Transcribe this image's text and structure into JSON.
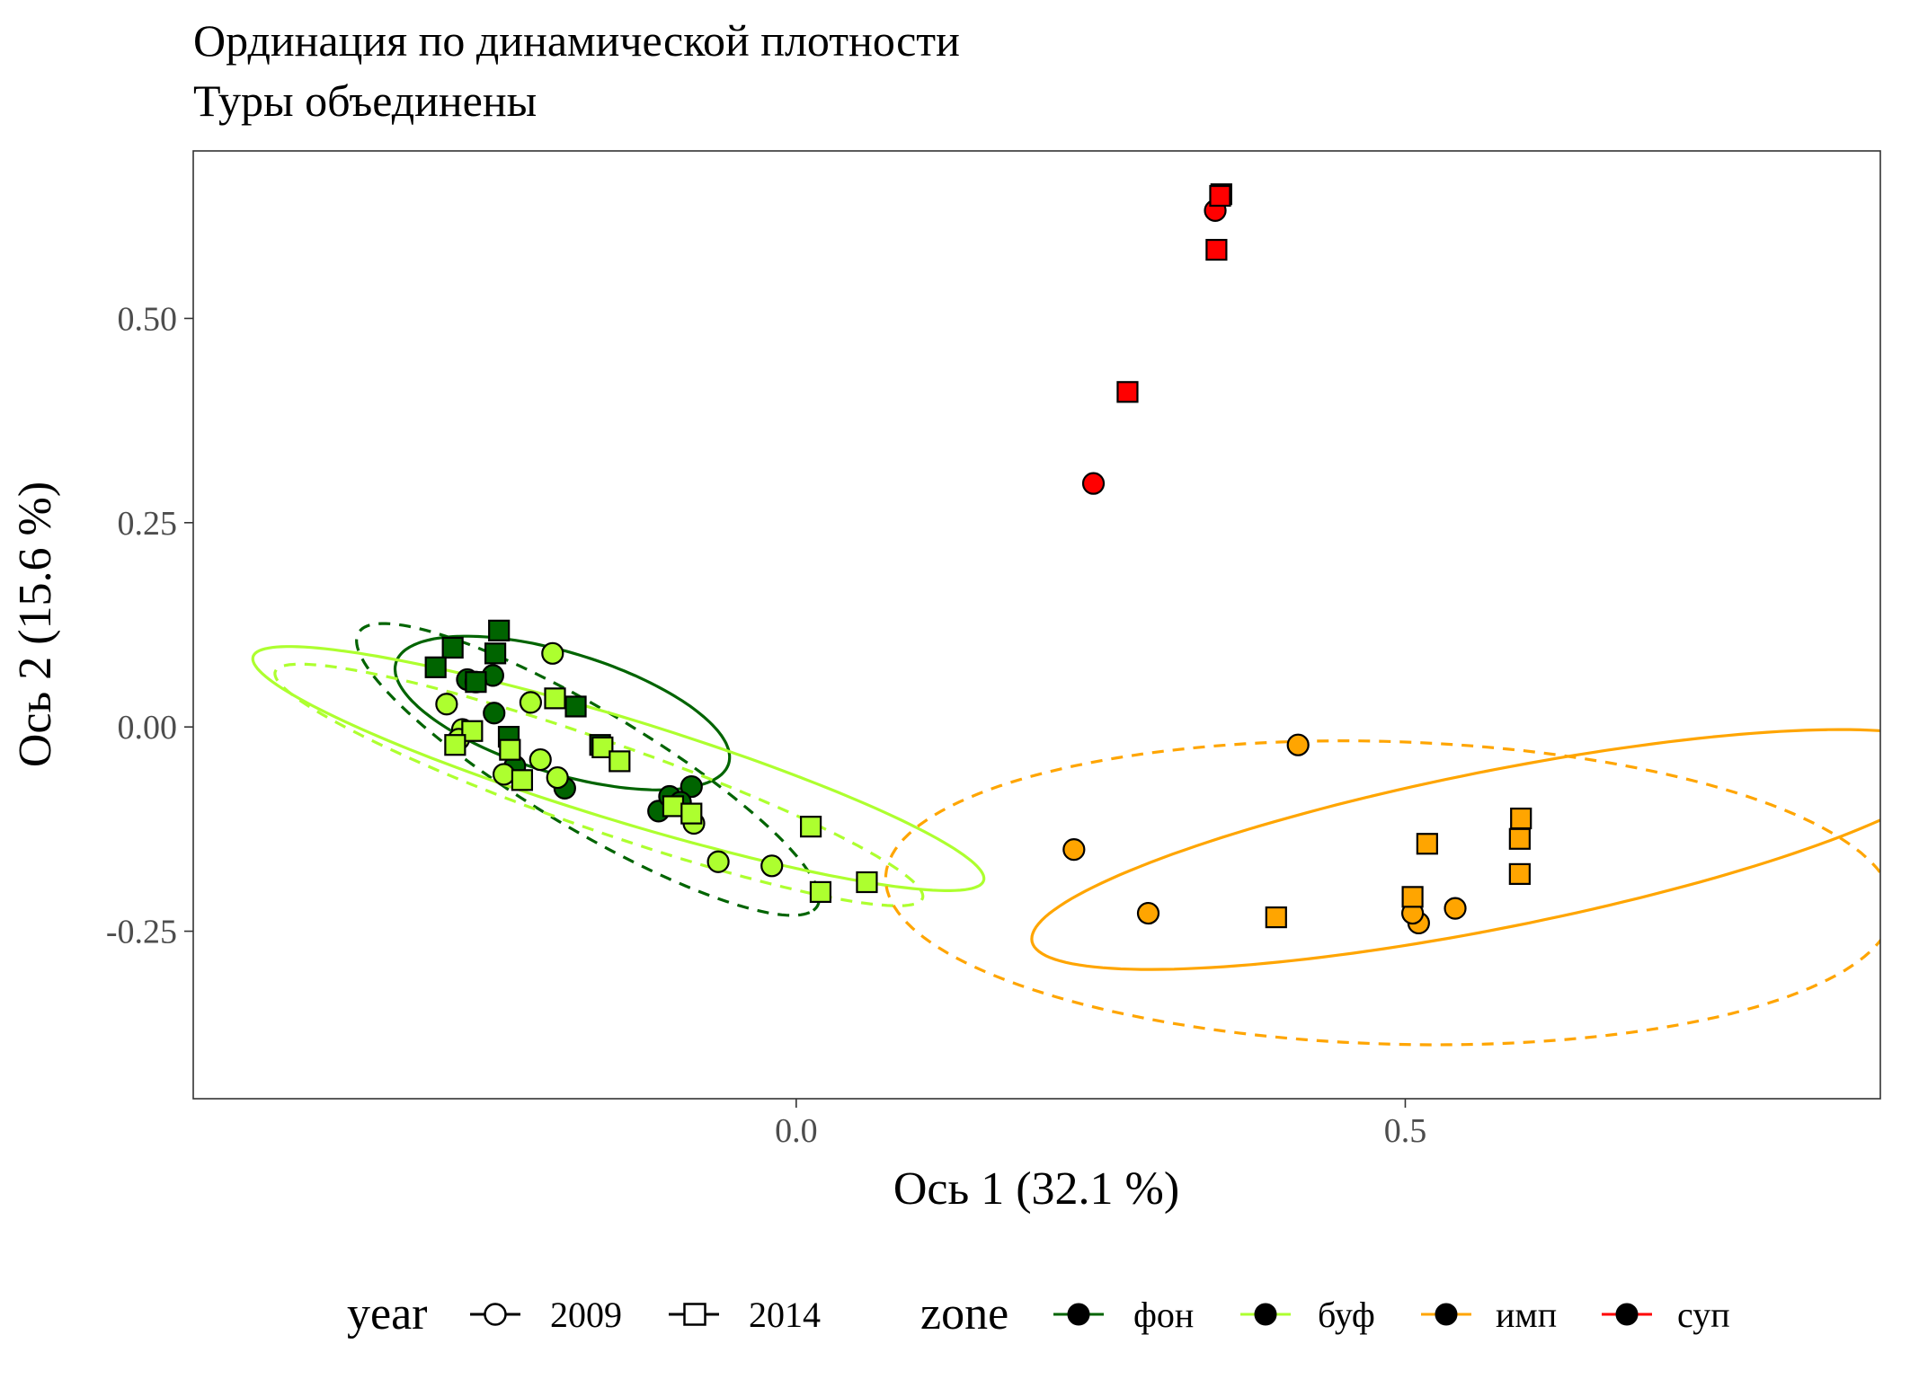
{
  "chart_data": {
    "type": "scatter",
    "title": "Ординация по динамической плотности",
    "subtitle": "Туры объединены",
    "xlabel": "Ось 1 (32.1 %)",
    "ylabel": "Ось 2 (15.6 %)",
    "xlim": [
      -0.495,
      0.89
    ],
    "ylim": [
      -0.455,
      0.705
    ],
    "x_ticks": [
      {
        "value": 0.0,
        "label": "0.0"
      },
      {
        "value": 0.5,
        "label": "0.5"
      }
    ],
    "y_ticks": [
      {
        "value": 0.5,
        "label": "0.50"
      },
      {
        "value": 0.25,
        "label": "0.25"
      },
      {
        "value": 0.0,
        "label": "0.00"
      },
      {
        "value": -0.25,
        "label": "-0.25"
      }
    ],
    "grid": false,
    "legend_position": "bottom",
    "legend": {
      "year_title": "year",
      "year_items": [
        {
          "label": "2009",
          "shape": "circle",
          "linetype": "solid"
        },
        {
          "label": "2014",
          "shape": "square",
          "linetype": "dashed"
        }
      ],
      "zone_title": "zone",
      "zone_items": [
        {
          "label": "фон",
          "color": "#006400"
        },
        {
          "label": "буф",
          "color": "#adff2f"
        },
        {
          "label": "имп",
          "color": "#ffa500"
        },
        {
          "label": "суп",
          "color": "#ff0000"
        }
      ]
    },
    "colors": {
      "фон": "#006400",
      "буф": "#adff2f",
      "имп": "#ffa500",
      "суп": "#ff0000"
    },
    "series": [
      {
        "zone": "фон",
        "year": "2009",
        "points": [
          [
            -0.249,
            0.063
          ],
          [
            -0.27,
            0.058
          ],
          [
            -0.263,
            0.055
          ],
          [
            -0.248,
            0.017
          ],
          [
            -0.231,
            -0.048
          ],
          [
            -0.19,
            -0.075
          ],
          [
            -0.113,
            -0.103
          ],
          [
            -0.086,
            -0.073
          ],
          [
            -0.104,
            -0.085
          ],
          [
            -0.095,
            -0.092
          ]
        ]
      },
      {
        "zone": "фон",
        "year": "2014",
        "points": [
          [
            -0.282,
            0.097
          ],
          [
            -0.296,
            0.073
          ],
          [
            -0.244,
            0.118
          ],
          [
            -0.247,
            0.09
          ],
          [
            -0.263,
            0.055
          ],
          [
            -0.181,
            0.025
          ],
          [
            -0.236,
            -0.012
          ],
          [
            -0.161,
            -0.022
          ]
        ]
      },
      {
        "zone": "буф",
        "year": "2009",
        "points": [
          [
            -0.2,
            0.09
          ],
          [
            -0.287,
            0.028
          ],
          [
            -0.218,
            0.03
          ],
          [
            -0.274,
            -0.003
          ],
          [
            -0.277,
            -0.015
          ],
          [
            -0.21,
            -0.04
          ],
          [
            -0.24,
            -0.058
          ],
          [
            -0.196,
            -0.062
          ],
          [
            -0.084,
            -0.118
          ],
          [
            -0.064,
            -0.165
          ],
          [
            -0.02,
            -0.17
          ]
        ]
      },
      {
        "zone": "буф",
        "year": "2014",
        "points": [
          [
            -0.198,
            0.035
          ],
          [
            -0.266,
            -0.005
          ],
          [
            -0.28,
            -0.022
          ],
          [
            -0.235,
            -0.028
          ],
          [
            -0.159,
            -0.025
          ],
          [
            -0.145,
            -0.042
          ],
          [
            -0.225,
            -0.065
          ],
          [
            -0.101,
            -0.097
          ],
          [
            -0.086,
            -0.106
          ],
          [
            0.012,
            -0.122
          ],
          [
            0.02,
            -0.202
          ],
          [
            0.058,
            -0.19
          ]
        ]
      },
      {
        "zone": "имп",
        "year": "2009",
        "points": [
          [
            0.228,
            -0.15
          ],
          [
            0.289,
            -0.228
          ],
          [
            0.412,
            -0.022
          ],
          [
            0.541,
            -0.222
          ],
          [
            0.511,
            -0.24
          ],
          [
            0.506,
            -0.228
          ]
        ]
      },
      {
        "zone": "имп",
        "year": "2014",
        "points": [
          [
            0.394,
            -0.233
          ],
          [
            0.518,
            -0.143
          ],
          [
            0.506,
            -0.208
          ],
          [
            0.595,
            -0.112
          ],
          [
            0.594,
            -0.137
          ],
          [
            0.594,
            -0.18
          ]
        ]
      },
      {
        "zone": "суп",
        "year": "2009",
        "points": [
          [
            0.244,
            0.298
          ],
          [
            0.344,
            0.632
          ]
        ]
      },
      {
        "zone": "суп",
        "year": "2014",
        "points": [
          [
            0.272,
            0.41
          ],
          [
            0.345,
            0.584
          ],
          [
            0.349,
            0.652
          ],
          [
            0.348,
            0.65
          ]
        ]
      }
    ],
    "ellipses": [
      {
        "zone": "фон",
        "year": "2009",
        "cx": -0.192,
        "cy": 0.017,
        "rx": 0.151,
        "ry": 0.07,
        "angle_deg": -28
      },
      {
        "zone": "фон",
        "year": "2014",
        "cx": -0.171,
        "cy": -0.052,
        "rx": 0.253,
        "ry": 0.063,
        "angle_deg": -43
      },
      {
        "zone": "буф",
        "year": "2009",
        "cx": -0.146,
        "cy": -0.051,
        "rx": 0.33,
        "ry": 0.059,
        "angle_deg": -25
      },
      {
        "zone": "буф",
        "year": "2014",
        "cx": -0.162,
        "cy": -0.071,
        "rx": 0.3,
        "ry": 0.051,
        "angle_deg": -28
      },
      {
        "zone": "имп",
        "year": "2009",
        "cx": 0.574,
        "cy": -0.15,
        "rx": 0.397,
        "ry": 0.094,
        "angle_deg": 17
      },
      {
        "zone": "имп",
        "year": "2014",
        "cx": 0.487,
        "cy": -0.203,
        "rx": 0.414,
        "ry": 0.185,
        "angle_deg": -3
      }
    ]
  }
}
